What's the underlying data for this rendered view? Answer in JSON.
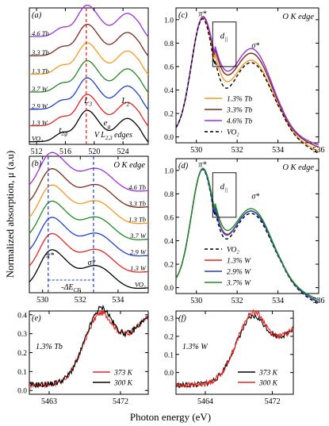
{
  "figure": {
    "ylabel": "Normalized absorption, μ (a.u)",
    "xlabel": "Photon energy (eV)"
  },
  "chart_data": [
    {
      "panel": "(a)",
      "type": "line",
      "title": "",
      "annotation_right": "V L",
      "annotation_sub": "2,3",
      "annotation_tail": " edges",
      "peak_labels": {
        "t2g": "t",
        "t2g_sub": "2g",
        "eg": "e",
        "eg_sub": "g",
        "L3": "L",
        "L3_sub": "3",
        "L2": "L",
        "L2_sub": "2"
      },
      "xlim": [
        511,
        527.5
      ],
      "xticks": [
        512,
        516,
        520,
        524
      ],
      "ylim": [
        0,
        1
      ],
      "dashed_x": 518.9,
      "series": [
        {
          "name": "VO₂",
          "color": "#000000",
          "offset": 0.0
        },
        {
          "name": "1.3 W",
          "color": "#e8231e",
          "offset": 0.12
        },
        {
          "name": "2.9 W",
          "color": "#1f3fd1",
          "offset": 0.24
        },
        {
          "name": "3.7 W",
          "color": "#1f8a1f",
          "offset": 0.36
        },
        {
          "name": "1.3 Tb",
          "color": "#f39a1e",
          "offset": 0.48
        },
        {
          "name": "3.3 Tb",
          "color": "#7a2a1a",
          "offset": 0.6
        },
        {
          "name": "4.6 Tb",
          "color": "#9b30e0",
          "offset": 0.72
        }
      ]
    },
    {
      "panel": "(b)",
      "type": "line",
      "title": "O K edge",
      "peak_labels": {
        "pi": "π*",
        "sigma": "σ*",
        "dE": "-ΔE",
        "dE_sub": "CF"
      },
      "xlim": [
        529.3,
        535.6
      ],
      "xticks": [
        530,
        532,
        534
      ],
      "dashed_x": [
        530.3,
        532.7
      ],
      "series": [
        {
          "name": "VO₂",
          "color": "#000000",
          "offset": 0.0
        },
        {
          "name": "1.3 W",
          "color": "#e8231e",
          "offset": 0.12
        },
        {
          "name": "2.9 W",
          "color": "#1f3fd1",
          "offset": 0.24
        },
        {
          "name": "3.7 W",
          "color": "#1f8a1f",
          "offset": 0.36
        },
        {
          "name": "1.3 Tb",
          "color": "#f39a1e",
          "offset": 0.48
        },
        {
          "name": "3.3 Tb",
          "color": "#7a2a1a",
          "offset": 0.6
        },
        {
          "name": "4.6 Tb",
          "color": "#9b30e0",
          "offset": 0.72
        }
      ]
    },
    {
      "panel": "(c)",
      "type": "line",
      "title": "O K edge",
      "peak_labels": {
        "pi": "π*",
        "sigma": "σ*",
        "d": "d",
        "d_sub": "||"
      },
      "xlim": [
        529,
        536
      ],
      "xticks": [
        530,
        532,
        534,
        536
      ],
      "ylim": [
        -0.05,
        1.1
      ],
      "yticks": [
        "0.0",
        "0.2",
        "0.4",
        "0.6",
        "0.8",
        "1.0"
      ],
      "legend_position": "bottom-right",
      "series": [
        {
          "name": "1.3% Tb",
          "color": "#f39a1e",
          "dashed": false
        },
        {
          "name": "3.3% Tb",
          "color": "#7a2a1a",
          "dashed": false
        },
        {
          "name": "4.6% Tb",
          "color": "#9b30e0",
          "dashed": false
        },
        {
          "name": "VO₂",
          "color": "#000000",
          "dashed": true
        }
      ]
    },
    {
      "panel": "(d)",
      "type": "line",
      "title": "O K edge",
      "peak_labels": {
        "pi": "π*",
        "sigma": "σ*",
        "d": "d",
        "d_sub": "||"
      },
      "xlim": [
        529,
        536
      ],
      "xticks": [
        530,
        532,
        534,
        536
      ],
      "ylim": [
        -0.05,
        1.1
      ],
      "yticks": [
        "0.0",
        "0.2",
        "0.4",
        "0.6",
        "0.8",
        "1.0"
      ],
      "legend_position": "bottom-right",
      "series": [
        {
          "name": "VO₂",
          "color": "#000000",
          "dashed": true
        },
        {
          "name": "1.3% W",
          "color": "#e8231e",
          "dashed": false
        },
        {
          "name": "2.9% W",
          "color": "#1f3fd1",
          "dashed": false
        },
        {
          "name": "3.7% W",
          "color": "#1f8a1f",
          "dashed": false
        }
      ]
    },
    {
      "panel": "(e)",
      "type": "line",
      "title": "1.3% Tb",
      "xlim": [
        5460.5,
        5475.5
      ],
      "xticks": [
        5463,
        5472
      ],
      "ylim": [
        -0.02,
        0.42
      ],
      "yticks": [
        "0.0",
        "0.1",
        "0.2",
        "0.3",
        "0.4"
      ],
      "legend_position": "bottom-right",
      "series": [
        {
          "name": "373 K",
          "color": "#e8231e"
        },
        {
          "name": "300 K",
          "color": "#000000"
        }
      ]
    },
    {
      "panel": "(f)",
      "type": "line",
      "title": "1.3% W",
      "xlim": [
        5460.5,
        5474.5
      ],
      "xticks": [
        5464,
        5472
      ],
      "ylim": [
        -0.12,
        0.34
      ],
      "yticks": [
        "0.0",
        "0.1",
        "0.2",
        "0.3"
      ],
      "legend_position": "bottom-right",
      "series": [
        {
          "name": "373 K",
          "color": "#000000"
        },
        {
          "name": "300 K",
          "color": "#e8231e"
        }
      ]
    }
  ]
}
